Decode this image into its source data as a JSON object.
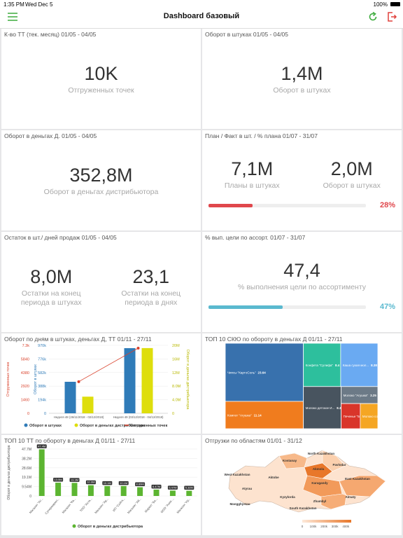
{
  "status_bar": {
    "time": "1:35 PM",
    "date": "Wed Dec 5",
    "battery": "100%"
  },
  "header": {
    "title": "Dashboard базовый"
  },
  "cards": [
    {
      "title": "К-во ТТ (тек. месяц) 01/05 - 04/05",
      "metrics": [
        {
          "value": "10K",
          "label": "Отгруженных точек"
        }
      ]
    },
    {
      "title": "Оборот в штуках 01/05 - 04/05",
      "metrics": [
        {
          "value": "1,4M",
          "label": "Оборот в штуках"
        }
      ]
    },
    {
      "title": "Оборот в деньгах Д. 01/05 - 04/05",
      "metrics": [
        {
          "value": "352,8M",
          "label": "Оборот в деньгах дистрибьютора"
        }
      ]
    },
    {
      "title": "План / Факт в шт. / % плана 01/07 - 31/07",
      "metrics": [
        {
          "value": "7,1M",
          "label": "Планы в штуках"
        },
        {
          "value": "2,0M",
          "label": "Оборот в штуках"
        }
      ],
      "progress": {
        "value": 28,
        "label": "28%",
        "color": "#e0474c"
      }
    },
    {
      "title": "Остаток в шт./ дней продаж 01/05 - 04/05",
      "metrics": [
        {
          "value": "8,0M",
          "label": "Остатки на конец периода в штуках"
        },
        {
          "value": "23,1",
          "label": "Остатки на конец периода в днях"
        }
      ]
    },
    {
      "title": "% вып. цели по ассорт. 01/07 - 31/07",
      "metrics": [
        {
          "value": "47,4",
          "label": "% выполнения цели по ассортименту"
        }
      ],
      "progress": {
        "value": 47,
        "label": "47%",
        "color": "#5ab9cf"
      }
    }
  ],
  "chart_data": [
    {
      "type": "combo",
      "title": "Оборот по дням в штуках, деньгах Д, ТТ 01/11 - 27/11",
      "categories": [
        "Неделя 48 (26/11/2018 - 02/12/2018)",
        "Неделя 49 (03/12/2018 - 04/12/2018)"
      ],
      "y_label": "Оборот в штуках",
      "y2_label": "Оборот в деньгах дистрибьютора",
      "y3_label": "Отгруженных точек",
      "ylim": [
        0,
        970000
      ],
      "yticks": [
        0,
        {
          "value": 194000,
          "label": "194k"
        },
        {
          "value": 388000,
          "label": "388k"
        },
        {
          "value": 582000,
          "label": "582k"
        },
        {
          "value": 776000,
          "label": "776k"
        },
        {
          "value": 970000,
          "label": "970k"
        }
      ],
      "y2lim": [
        0,
        20000000
      ],
      "y2ticks": [
        0,
        {
          "value": 4000000,
          "label": "4.0M"
        },
        {
          "value": 8000000,
          "label": "8.0M"
        },
        {
          "value": 12000000,
          "label": "12M"
        },
        {
          "value": 16000000,
          "label": "16M"
        },
        {
          "value": 20000000,
          "label": "20M"
        }
      ],
      "y3lim": [
        0,
        7300
      ],
      "y3ticks": [
        0,
        1460,
        2920,
        4380,
        5840,
        {
          "value": 7300,
          "label": "7.3k"
        }
      ],
      "series": [
        {
          "name": "Оборот в штуках",
          "type": "bar",
          "color": "#2f7bb8",
          "axis": "y",
          "values": [
            450000,
            930000
          ]
        },
        {
          "name": "Оборот в деньгах дистрибьютора",
          "type": "bar",
          "color": "#dede0c",
          "axis": "y2",
          "values": [
            4900000,
            19200000
          ]
        },
        {
          "name": "Отгруженных точек",
          "type": "line",
          "color": "#d9412b",
          "axis": "y3",
          "values": [
            3400,
            7000
          ]
        }
      ]
    },
    {
      "type": "treemap",
      "title": "ТОП 10 СКЮ по обороту в деньгах Д 01/11 - 27/11",
      "items": [
        {
          "name": "Чипсы \"КартоСоль\"",
          "value": 23.64,
          "color": "#3871ad"
        },
        {
          "name": "Компот \"Агушка\"",
          "value": 11.14,
          "color": "#f07c1e"
        },
        {
          "name": "Конфета \"Сулифа\"",
          "value": 8.4,
          "color": "#2dbf9d"
        },
        {
          "name": "Каша сухая мол...",
          "value": 8.38,
          "color": "#6aaaf2"
        },
        {
          "name": "Молоко детское И...",
          "value": 8.3,
          "color": "#48545f"
        },
        {
          "name": "Молоко \"Агушка\"",
          "value": 3.25,
          "color": "#6c7a87"
        },
        {
          "name": "Печенье \"Б...\"",
          "value": 2.5,
          "color": "#d9352a"
        },
        {
          "name": "Молоко со...",
          "value": 2.3,
          "color": "#f5a623"
        }
      ]
    },
    {
      "type": "bar",
      "title": "ТОП 10 ТТ по обороту в деньгах Д 01/11 - 27/11",
      "y_label": "Оборот в деньгах дистрибьютора",
      "legend": "Оборот в деньгах дистрибьютора",
      "color": "#5cb531",
      "categories": [
        "Магазин \"Ас...",
        "Супермаркет...",
        "Магазин \"Ка...",
        "ТОО \"Аста...",
        "Магазин \"Ар...",
        "ИП \"Сейтк...",
        "Магазин \"Ай...",
        "Маркет \"Бе...",
        "ООО \"Азия ...",
        "Магазин \"Ну..."
      ],
      "values": [
        47.4,
        13.5,
        13.3,
        10.9,
        10.1,
        10.1,
        8.89,
        6.47,
        5.47,
        5.32
      ],
      "value_labels": [
        "47.4M",
        "13.5M",
        "13.3M",
        "10.9M",
        "10.1M",
        "10.1M",
        "8.89M",
        "6.47M",
        "5.47M",
        "5.32M"
      ],
      "ylim": [
        0,
        47.7
      ],
      "yticks": [
        0,
        {
          "value": 9.54,
          "label": "9.54M"
        },
        {
          "value": 19.1,
          "label": "19.1M"
        },
        {
          "value": 28.6,
          "label": "28.6M"
        },
        {
          "value": 38.2,
          "label": "38.2M"
        },
        {
          "value": 47.7,
          "label": "47.7M"
        }
      ]
    },
    {
      "type": "map",
      "title": "Отгрузки по областям 01/01 - 31/12",
      "regions": [
        "North Kazakhstan",
        "Kostanay",
        "Akmola",
        "Pavlodar",
        "West Kazakhstan",
        "Aktobe",
        "Karagandy",
        "East Kazakhstan",
        "Atyrau",
        "Kyzylorda",
        "Zhambyl",
        "Almaty",
        "Mangghystau",
        "South Kazakhstan"
      ],
      "legend_lim": [
        0,
        450000
      ],
      "legend_ticks": [
        0,
        {
          "value": 100000,
          "label": "100k"
        },
        {
          "value": 200000,
          "label": "200k"
        },
        {
          "value": 300000,
          "label": "300k"
        },
        {
          "value": 400000,
          "label": "400k"
        }
      ]
    }
  ]
}
